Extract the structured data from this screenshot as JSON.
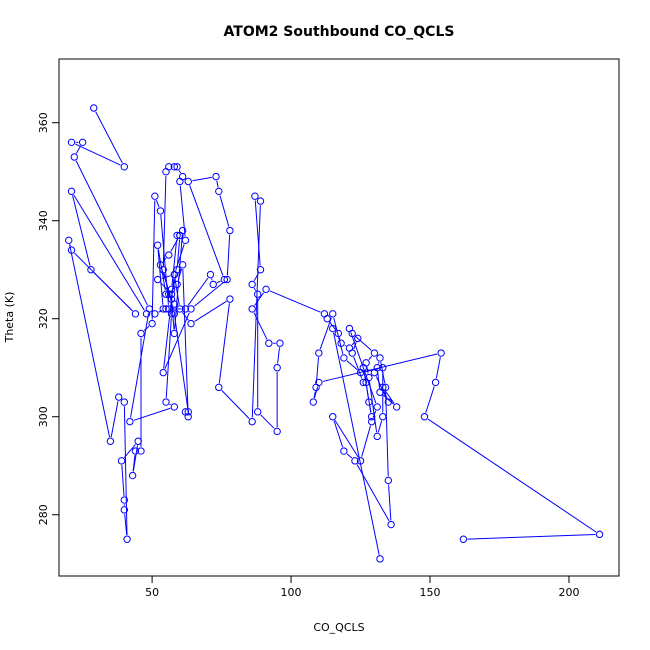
{
  "chart_data": {
    "type": "line",
    "title": "ATOM2 Southbound CO_QCLS",
    "xlabel": "CO_QCLS",
    "ylabel": "Theta (K)",
    "xlim": [
      16.5,
      218
    ],
    "ylim": [
      267.5,
      373
    ],
    "xticks": [
      50,
      100,
      150,
      200
    ],
    "yticks": [
      280,
      300,
      320,
      340,
      360
    ],
    "grid": false,
    "legend": "none",
    "markers": "open-circle",
    "color": "#0000ff",
    "series": [
      {
        "x": [
          29,
          40,
          21,
          25,
          22,
          49,
          42,
          58,
          55,
          57,
          58,
          56,
          59,
          61,
          63,
          62,
          63,
          58,
          54,
          55,
          56,
          58,
          59,
          61,
          60,
          62,
          58,
          52,
          57,
          59,
          60,
          56,
          53,
          57,
          58,
          61,
          60,
          59,
          57,
          55,
          52,
          54,
          56,
          53,
          51,
          50,
          46,
          46,
          44,
          43,
          45,
          39,
          40,
          40,
          41,
          40,
          38,
          35,
          20,
          21,
          44,
          28,
          21,
          48,
          51,
          55,
          62,
          71,
          72,
          76,
          63,
          73,
          74,
          78,
          77,
          64,
          54,
          58,
          60,
          64,
          78,
          74,
          86,
          89,
          87,
          89,
          86,
          88,
          88,
          95,
          95,
          96,
          92,
          86,
          91,
          112,
          113,
          117,
          118,
          121,
          124,
          122,
          126,
          127,
          128,
          129,
          126,
          130,
          135,
          133,
          138,
          132,
          131,
          132,
          134,
          135,
          136,
          123,
          119,
          115,
          125,
          129,
          131,
          121,
          122,
          130,
          127,
          128,
          131,
          133,
          133,
          125,
          119,
          115,
          110,
          109,
          108,
          110,
          154,
          152,
          148,
          211,
          162
        ],
        "y": [
          363,
          351,
          356,
          356,
          353,
          322,
          299,
          302,
          303,
          321,
          323,
          325,
          327,
          331,
          300,
          301,
          301,
          321,
          330,
          350,
          351,
          351,
          351,
          349,
          348,
          336,
          329,
          328,
          325,
          330,
          337,
          333,
          331,
          324,
          317,
          338,
          337,
          337,
          326,
          325,
          335,
          322,
          322,
          342,
          345,
          319,
          317,
          293,
          293,
          288,
          295,
          291,
          283,
          281,
          275,
          303,
          304,
          295,
          336,
          334,
          321,
          330,
          346,
          321,
          321,
          322,
          322,
          329,
          327,
          328,
          348,
          349,
          346,
          338,
          328,
          322,
          309,
          329,
          322,
          319,
          324,
          306,
          299,
          344,
          345,
          330,
          327,
          325,
          301,
          297,
          310,
          315,
          315,
          322,
          326,
          321,
          320,
          317,
          315,
          314,
          316,
          313,
          307,
          307,
          303,
          300,
          310,
          309,
          303,
          306,
          302,
          305,
          310,
          312,
          306,
          287,
          278,
          291,
          293,
          300,
          291,
          299,
          302,
          318,
          317,
          313,
          311,
          308,
          296,
          300,
          310,
          309,
          312,
          321,
          313,
          306,
          303,
          307,
          313,
          307,
          300,
          276,
          275
        ]
      },
      {
        "x": [
          115,
          132
        ],
        "y": [
          318,
          271
        ]
      }
    ]
  }
}
